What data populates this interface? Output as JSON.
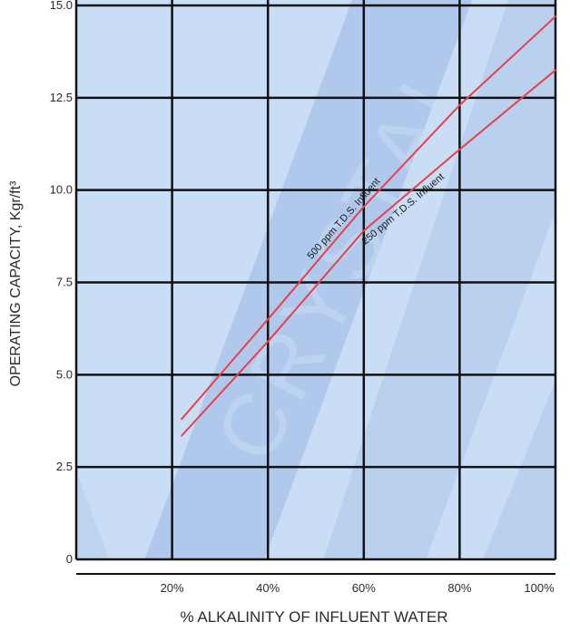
{
  "chart_data": {
    "type": "line",
    "title": "",
    "xlabel": "% ALKALINITY OF INFLUENT WATER",
    "ylabel": "OPERATING CAPACITY, Kgr/ft³",
    "xlim": [
      0,
      100
    ],
    "ylim": [
      0,
      15
    ],
    "x_ticks": [
      20,
      40,
      60,
      80,
      100
    ],
    "x_tick_labels": [
      "20%",
      "40%",
      "60%",
      "80%",
      "100%"
    ],
    "y_ticks": [
      0,
      2.5,
      5.0,
      7.5,
      10.0,
      12.5,
      15.0
    ],
    "y_tick_labels": [
      "0",
      "2.5",
      "5.0",
      "7.5",
      "10.0",
      "12.5",
      "15.0"
    ],
    "grid": true,
    "series": [
      {
        "name": "500 ppm T.D.S. Influent",
        "color": "#e8404a",
        "x": [
          22,
          40,
          60,
          80,
          100
        ],
        "y": [
          3.8,
          6.5,
          9.55,
          12.3,
          14.7
        ]
      },
      {
        "name": "250 ppm T.D.S. Influent",
        "color": "#e8404a",
        "x": [
          22,
          40,
          60,
          80,
          100
        ],
        "y": [
          3.35,
          5.9,
          8.9,
          11.1,
          13.25
        ]
      }
    ],
    "colors": {
      "plot_background": "#c9def4",
      "watermark_band": "#9ab6e6",
      "grid": "#111111",
      "line": "#e8404a"
    }
  },
  "watermark": "CRYSTAL"
}
